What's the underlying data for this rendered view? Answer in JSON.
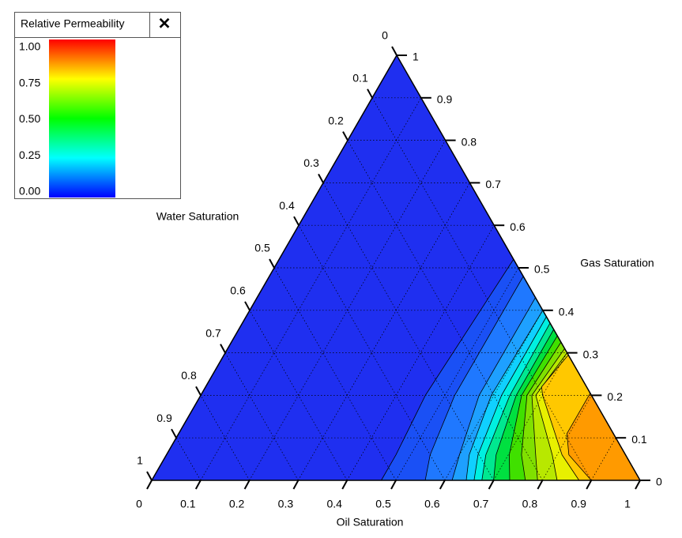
{
  "chart_data": {
    "type": "ternary-contour",
    "base_color": "#1f2ff0",
    "grid": true,
    "oil_axis": {
      "label": "Oil Saturation",
      "ticks": [
        0,
        0.1,
        0.2,
        0.3,
        0.4,
        0.5,
        0.6,
        0.7,
        0.8,
        0.9,
        1
      ]
    },
    "gas_axis": {
      "label": "Gas Saturation",
      "ticks": [
        0,
        0.1,
        0.2,
        0.3,
        0.4,
        0.5,
        0.6,
        0.7,
        0.8,
        0.9,
        1
      ]
    },
    "water_axis": {
      "label": "Water Saturation",
      "ticks": [
        0,
        0.1,
        0.2,
        0.3,
        0.4,
        0.5,
        0.6,
        0.7,
        0.8,
        0.9,
        1
      ]
    },
    "contours": [
      {
        "level": 0.05,
        "color": "#1a50f5",
        "points": [
          [
            0.48,
            0.52
          ],
          [
            0.46,
            0.2
          ],
          [
            0.47,
            0.06
          ],
          [
            0.47,
            0
          ]
        ]
      },
      {
        "level": 0.1,
        "color": "#1f78ff",
        "points": [
          [
            0.52,
            0.48
          ],
          [
            0.52,
            0.2
          ],
          [
            0.54,
            0.06
          ],
          [
            0.56,
            0
          ]
        ]
      },
      {
        "level": 0.15,
        "color": "#1ea0ff",
        "points": [
          [
            0.57,
            0.43
          ],
          [
            0.57,
            0.2
          ],
          [
            0.6,
            0.06
          ],
          [
            0.615,
            0
          ]
        ]
      },
      {
        "level": 0.2,
        "color": "#10d0ff",
        "points": [
          [
            0.6,
            0.4
          ],
          [
            0.595,
            0.2
          ],
          [
            0.62,
            0.06
          ],
          [
            0.644,
            0
          ]
        ]
      },
      {
        "level": 0.25,
        "color": "#00f0e0",
        "points": [
          [
            0.615,
            0.385
          ],
          [
            0.616,
            0.2
          ],
          [
            0.638,
            0.06
          ],
          [
            0.66,
            0
          ]
        ]
      },
      {
        "level": 0.3,
        "color": "#00e890",
        "points": [
          [
            0.63,
            0.37
          ],
          [
            0.633,
            0.2
          ],
          [
            0.654,
            0.06
          ],
          [
            0.676,
            0
          ]
        ]
      },
      {
        "level": 0.35,
        "color": "#00e040",
        "points": [
          [
            0.645,
            0.355
          ],
          [
            0.646,
            0.2
          ],
          [
            0.675,
            0.06
          ],
          [
            0.7,
            0
          ]
        ]
      },
      {
        "level": 0.4,
        "color": "#40e000",
        "points": [
          [
            0.66,
            0.34
          ],
          [
            0.657,
            0.2
          ],
          [
            0.702,
            0.06
          ],
          [
            0.733,
            0
          ]
        ]
      },
      {
        "level": 0.45,
        "color": "#80e000",
        "points": [
          [
            0.675,
            0.325
          ],
          [
            0.668,
            0.2
          ],
          [
            0.727,
            0.06
          ],
          [
            0.765,
            0
          ]
        ]
      },
      {
        "level": 0.5,
        "color": "#b8e800",
        "points": [
          [
            0.69,
            0.31
          ],
          [
            0.678,
            0.2
          ],
          [
            0.756,
            0.06
          ],
          [
            0.79,
            0
          ]
        ]
      },
      {
        "level": 0.55,
        "color": "#e8f000",
        "points": [
          [
            0.7,
            0.3
          ],
          [
            0.686,
            0.2
          ],
          [
            0.79,
            0.06
          ],
          [
            0.83,
            0
          ]
        ]
      },
      {
        "level": 0.6,
        "color": "#ffc800",
        "points": [
          [
            0.705,
            0.295
          ],
          [
            0.688,
            0.22
          ],
          [
            0.7,
            0.2
          ],
          [
            0.81,
            0.06
          ],
          [
            0.875,
            0
          ]
        ]
      },
      {
        "level": 0.7,
        "color": "#ff9a00",
        "points": [
          [
            0.795,
            0.205
          ],
          [
            0.795,
            0.11
          ],
          [
            0.824,
            0.06
          ],
          [
            0.9,
            0
          ]
        ]
      }
    ],
    "legend": {
      "title": "Relative Permeability",
      "close_label": "✕",
      "colors": [
        "#0000ff",
        "#00ffff",
        "#00ff00",
        "#ffff00",
        "#ff0000"
      ],
      "range": [
        0,
        1
      ],
      "ticks": [
        {
          "value": 0,
          "label": "0.00"
        },
        {
          "value": 0.25,
          "label": "0.25"
        },
        {
          "value": 0.5,
          "label": "0.50"
        },
        {
          "value": 0.75,
          "label": "0.75"
        },
        {
          "value": 1,
          "label": "1.00"
        }
      ]
    }
  }
}
